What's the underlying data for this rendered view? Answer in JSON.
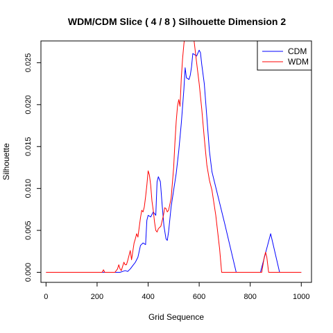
{
  "chart_data": {
    "type": "line",
    "title": "WDM/CDM Slice ( 4 / 8 )  Silhouette Dimension 2",
    "xlabel": "Grid Sequence",
    "ylabel": "Silhouette",
    "xlim": [
      -20,
      1040
    ],
    "ylim": [
      -0.0012,
      0.0276
    ],
    "x_ticks": [
      0,
      200,
      400,
      600,
      800,
      1000
    ],
    "x_tick_labels": [
      "0",
      "200",
      "400",
      "600",
      "800",
      "1000"
    ],
    "y_ticks": [
      0.0,
      0.005,
      0.01,
      0.015,
      0.02,
      0.025
    ],
    "y_tick_labels": [
      "0.000",
      "0.005",
      "0.010",
      "0.015",
      "0.020",
      "0.025"
    ],
    "grid": false,
    "legend_position": "top-right",
    "series": [
      {
        "name": "CDM",
        "color": "#0000ff",
        "points": [
          [
            0,
            0
          ],
          [
            290,
            0
          ],
          [
            300,
            0.0001
          ],
          [
            310,
            0.0002
          ],
          [
            320,
            0.0001
          ],
          [
            330,
            0.0004
          ],
          [
            340,
            0.0008
          ],
          [
            350,
            0.0012
          ],
          [
            360,
            0.0018
          ],
          [
            370,
            0.0032
          ],
          [
            380,
            0.0035
          ],
          [
            390,
            0.0033
          ],
          [
            395,
            0.0062
          ],
          [
            400,
            0.0068
          ],
          [
            410,
            0.0066
          ],
          [
            420,
            0.0072
          ],
          [
            430,
            0.0068
          ],
          [
            435,
            0.0108
          ],
          [
            440,
            0.0114
          ],
          [
            448,
            0.0108
          ],
          [
            455,
            0.008
          ],
          [
            462,
            0.0055
          ],
          [
            470,
            0.004
          ],
          [
            475,
            0.0038
          ],
          [
            480,
            0.0048
          ],
          [
            490,
            0.0078
          ],
          [
            500,
            0.0098
          ],
          [
            510,
            0.0118
          ],
          [
            520,
            0.0145
          ],
          [
            530,
            0.0178
          ],
          [
            540,
            0.0218
          ],
          [
            545,
            0.0244
          ],
          [
            550,
            0.0232
          ],
          [
            560,
            0.023
          ],
          [
            565,
            0.0235
          ],
          [
            570,
            0.0245
          ],
          [
            575,
            0.0261
          ],
          [
            580,
            0.026
          ],
          [
            590,
            0.0258
          ],
          [
            600,
            0.0265
          ],
          [
            605,
            0.0262
          ],
          [
            610,
            0.0248
          ],
          [
            620,
            0.0225
          ],
          [
            630,
            0.0185
          ],
          [
            640,
            0.0145
          ],
          [
            650,
            0.012
          ],
          [
            700,
            0.0058
          ],
          [
            745,
            0
          ],
          [
            840,
            0
          ],
          [
            880,
            0.0046
          ],
          [
            915,
            0
          ],
          [
            1000,
            0
          ]
        ]
      },
      {
        "name": "WDM",
        "color": "#ff0000",
        "points": [
          [
            0,
            0
          ],
          [
            220,
            0
          ],
          [
            225,
            0.0003
          ],
          [
            230,
            0
          ],
          [
            270,
            0
          ],
          [
            280,
            0.0004
          ],
          [
            285,
            0.0009
          ],
          [
            290,
            0.0004
          ],
          [
            295,
            0.0002
          ],
          [
            305,
            0.0012
          ],
          [
            310,
            0.0009
          ],
          [
            315,
            0.0009
          ],
          [
            320,
            0.0014
          ],
          [
            325,
            0.002
          ],
          [
            330,
            0.0026
          ],
          [
            335,
            0.0015
          ],
          [
            340,
            0.0025
          ],
          [
            345,
            0.0035
          ],
          [
            350,
            0.004
          ],
          [
            355,
            0.0046
          ],
          [
            360,
            0.0042
          ],
          [
            370,
            0.0065
          ],
          [
            375,
            0.0074
          ],
          [
            380,
            0.0072
          ],
          [
            385,
            0.0078
          ],
          [
            390,
            0.009
          ],
          [
            395,
            0.0104
          ],
          [
            400,
            0.0121
          ],
          [
            405,
            0.0116
          ],
          [
            410,
            0.0104
          ],
          [
            415,
            0.0085
          ],
          [
            420,
            0.0074
          ],
          [
            425,
            0.006
          ],
          [
            430,
            0.005
          ],
          [
            435,
            0.0048
          ],
          [
            440,
            0.0052
          ],
          [
            450,
            0.0055
          ],
          [
            460,
            0.0068
          ],
          [
            465,
            0.0077
          ],
          [
            470,
            0.0076
          ],
          [
            475,
            0.0072
          ],
          [
            480,
            0.0074
          ],
          [
            490,
            0.0088
          ],
          [
            500,
            0.0125
          ],
          [
            505,
            0.0155
          ],
          [
            510,
            0.018
          ],
          [
            515,
            0.0198
          ],
          [
            520,
            0.0206
          ],
          [
            525,
            0.0198
          ],
          [
            530,
            0.0232
          ],
          [
            535,
            0.0255
          ],
          [
            540,
            0.0272
          ],
          [
            545,
            0.0285
          ],
          [
            550,
            0.029
          ],
          [
            560,
            0.029
          ],
          [
            570,
            0.028
          ],
          [
            575,
            0.0282
          ],
          [
            580,
            0.0276
          ],
          [
            590,
            0.025
          ],
          [
            600,
            0.0225
          ],
          [
            610,
            0.0195
          ],
          [
            620,
            0.016
          ],
          [
            630,
            0.0128
          ],
          [
            640,
            0.011
          ],
          [
            645,
            0.0104
          ],
          [
            650,
            0.0098
          ],
          [
            665,
            0.0068
          ],
          [
            680,
            0.0028
          ],
          [
            688,
            0
          ],
          [
            845,
            0
          ],
          [
            855,
            0.0018
          ],
          [
            860,
            0.0024
          ],
          [
            865,
            0.0018
          ],
          [
            872,
            0
          ],
          [
            1000,
            0
          ]
        ]
      }
    ]
  }
}
